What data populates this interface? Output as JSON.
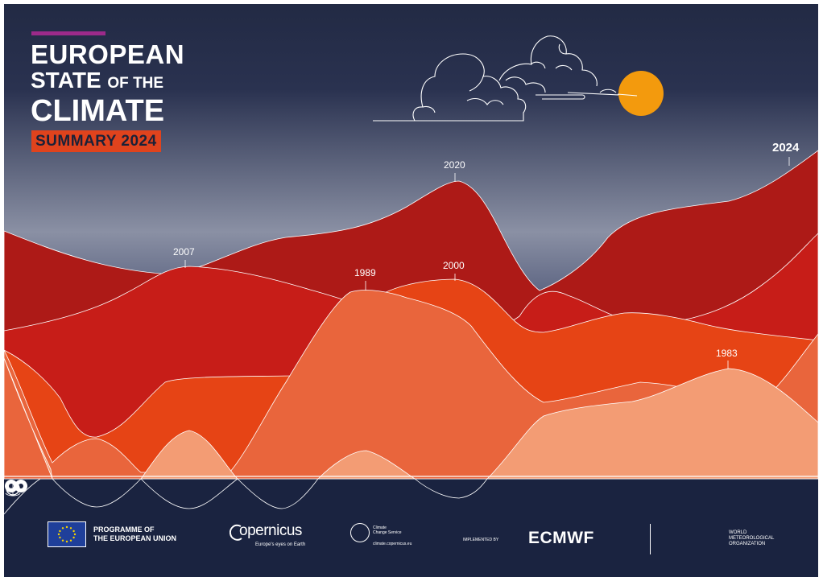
{
  "cover": {
    "title_line1": "EUROPEAN",
    "title_line2_main": "STATE",
    "title_line2_small": "OF THE",
    "title_line3": "CLIMATE",
    "subtitle": "SUMMARY 2024"
  },
  "year_labels": {
    "y2007": "2007",
    "y2020": "2020",
    "y1989": "1989",
    "y2000": "2000",
    "y1983": "1983",
    "y2024": "2024"
  },
  "footer": {
    "eu_programme_line1": "PROGRAMME OF",
    "eu_programme_line2": "THE EUROPEAN UNION",
    "copernicus_name": "opernicus",
    "copernicus_tagline": "Europe's eyes on Earth",
    "c3s_line1": "Climate",
    "c3s_line2": "Change Service",
    "c3s_url": "climate.copernicus.eu",
    "implemented_by": "IMPLEMENTED BY",
    "ecmwf": "ECMWF",
    "wmo_line1": "WORLD",
    "wmo_line2": "METEOROLOGICAL",
    "wmo_line3": "ORGANIZATION"
  },
  "colors": {
    "sky_top": "#222a44",
    "sky_bottom": "#8a90a4",
    "layer_darkred": "#ad1a17",
    "layer_red": "#c71d18",
    "layer_orange": "#e64415",
    "layer_coral": "#e9653c",
    "layer_peach": "#f39c74",
    "sun": "#f39a0d",
    "navy": "#1a2340",
    "accent": "#9c2a8a"
  },
  "icons": [
    "cloud-outline-icon",
    "sun-icon",
    "eu-flag-icon",
    "copernicus-logo-icon",
    "c3s-logo-icon",
    "ecmwf-logo-icon",
    "wmo-emblem-icon"
  ]
}
